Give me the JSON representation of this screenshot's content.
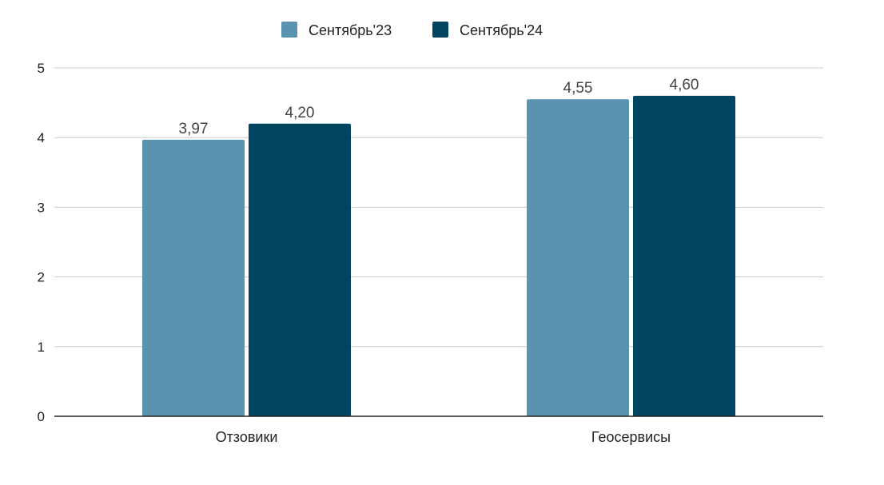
{
  "chart_data": {
    "type": "bar",
    "title": "",
    "xlabel": "",
    "ylabel": "",
    "categories": [
      "Отзовики",
      "Геосервисы"
    ],
    "series": [
      {
        "name": "Сентябрь'23",
        "values": [
          3.97,
          4.55
        ],
        "labels": [
          "3,97",
          "4,55"
        ],
        "color": "#5a93b0"
      },
      {
        "name": "Сентябрь'24",
        "values": [
          4.2,
          4.6
        ],
        "labels": [
          "4,20",
          "4,60"
        ],
        "color": "#004560"
      }
    ],
    "ylim": [
      0,
      5
    ],
    "yticks": [
      "0",
      "1",
      "2",
      "3",
      "4",
      "5"
    ],
    "grid": true,
    "legend_position": "top-center"
  }
}
